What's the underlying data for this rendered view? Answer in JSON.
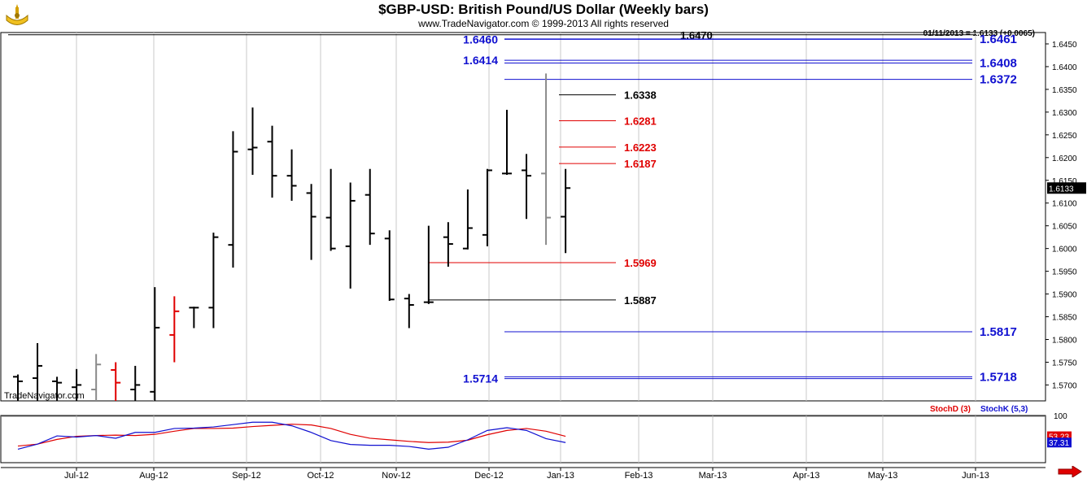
{
  "header": {
    "title": "$GBP-USD:  British Pound/US Dollar  (Weekly bars)",
    "copyright": "www.TradeNavigator.com © 1999-2013 All rights reserved",
    "quote": "01/11/2013 = 1.6133 (+0.0065)",
    "watermark": "TradeNavigator.com"
  },
  "colors": {
    "blue": "#1010d0",
    "red": "#e00000",
    "black": "#000000",
    "gray": "#8a8a8a",
    "grid": "#c8c8c8"
  },
  "chart_data": {
    "type": "bar",
    "title": "$GBP-USD:  British Pound/US Dollar  (Weekly bars)",
    "price_axis": {
      "ylim": [
        1.5665,
        1.6475
      ],
      "ticks": [
        "1.6450",
        "1.6400",
        "1.6350",
        "1.6300",
        "1.6250",
        "1.6200",
        "1.6150",
        "1.6100",
        "1.6050",
        "1.6000",
        "1.5950",
        "1.5900",
        "1.5850",
        "1.5800",
        "1.5750",
        "1.5700"
      ],
      "last_price_label": "1.6133"
    },
    "time_axis": {
      "labels": [
        "Jul-12",
        "Aug-12",
        "Sep-12",
        "Oct-12",
        "Nov-12",
        "Dec-12",
        "Jan-13",
        "Feb-13",
        "Mar-13",
        "Apr-13",
        "May-13",
        "Jun-13"
      ]
    },
    "ohlc": [
      {
        "h": 1.5723,
        "l": 1.5665,
        "o": 1.5718,
        "c": 1.5708,
        "color": "black"
      },
      {
        "h": 1.5792,
        "l": 1.5665,
        "o": 1.5715,
        "c": 1.5742,
        "color": "black"
      },
      {
        "h": 1.5718,
        "l": 1.5665,
        "o": 1.5708,
        "c": 1.5705,
        "color": "black"
      },
      {
        "h": 1.5735,
        "l": 1.5665,
        "o": 1.5695,
        "c": 1.57,
        "color": "black"
      },
      {
        "h": 1.5768,
        "l": 1.5665,
        "o": 1.569,
        "c": 1.5745,
        "color": "gray"
      },
      {
        "h": 1.575,
        "l": 1.5665,
        "o": 1.5733,
        "c": 1.5705,
        "color": "red"
      },
      {
        "h": 1.5742,
        "l": 1.5665,
        "o": 1.569,
        "c": 1.57,
        "color": "black"
      },
      {
        "h": 1.5915,
        "l": 1.5665,
        "o": 1.5685,
        "c": 1.5826,
        "color": "black"
      },
      {
        "h": 1.5895,
        "l": 1.575,
        "o": 1.581,
        "c": 1.5862,
        "color": "red"
      },
      {
        "h": 1.5872,
        "l": 1.5825,
        "o": 1.587,
        "c": 1.587,
        "color": "black"
      },
      {
        "h": 1.6035,
        "l": 1.5825,
        "o": 1.587,
        "c": 1.6025,
        "color": "black"
      },
      {
        "h": 1.6258,
        "l": 1.5958,
        "o": 1.6008,
        "c": 1.6213,
        "color": "black"
      },
      {
        "h": 1.631,
        "l": 1.6162,
        "o": 1.6218,
        "c": 1.6222,
        "color": "black"
      },
      {
        "h": 1.627,
        "l": 1.6112,
        "o": 1.6235,
        "c": 1.616,
        "color": "black"
      },
      {
        "h": 1.6218,
        "l": 1.6105,
        "o": 1.616,
        "c": 1.6138,
        "color": "black"
      },
      {
        "h": 1.6142,
        "l": 1.5975,
        "o": 1.6122,
        "c": 1.607,
        "color": "black"
      },
      {
        "h": 1.6175,
        "l": 1.5995,
        "o": 1.6068,
        "c": 1.6,
        "color": "black"
      },
      {
        "h": 1.6145,
        "l": 1.5912,
        "o": 1.6005,
        "c": 1.6105,
        "color": "black"
      },
      {
        "h": 1.6175,
        "l": 1.6008,
        "o": 1.6118,
        "c": 1.6033,
        "color": "black"
      },
      {
        "h": 1.604,
        "l": 1.5885,
        "o": 1.6022,
        "c": 1.5888,
        "color": "black"
      },
      {
        "h": 1.59,
        "l": 1.5825,
        "o": 1.589,
        "c": 1.5876,
        "color": "black"
      },
      {
        "h": 1.605,
        "l": 1.5878,
        "o": 1.5882,
        "c": 1.5882,
        "color": "black"
      },
      {
        "h": 1.6058,
        "l": 1.596,
        "o": 1.6025,
        "c": 1.601,
        "color": "black"
      },
      {
        "h": 1.613,
        "l": 1.5998,
        "o": 1.6,
        "c": 1.6045,
        "color": "black"
      },
      {
        "h": 1.6175,
        "l": 1.6005,
        "o": 1.603,
        "c": 1.6172,
        "color": "black"
      },
      {
        "h": 1.6305,
        "l": 1.6162,
        "o": 1.6165,
        "c": 1.6165,
        "color": "black"
      },
      {
        "h": 1.6208,
        "l": 1.6065,
        "o": 1.6172,
        "c": 1.616,
        "color": "black"
      },
      {
        "h": 1.6385,
        "l": 1.6008,
        "o": 1.6165,
        "c": 1.6068,
        "color": "gray"
      },
      {
        "h": 1.6175,
        "l": 1.599,
        "o": 1.607,
        "c": 1.6133,
        "color": "black"
      }
    ],
    "levels": [
      {
        "price": 1.647,
        "label": "1.6470",
        "color": "black",
        "line": "long"
      },
      {
        "price": 1.646,
        "label": "1.6460",
        "color": "blue",
        "line": "left-label"
      },
      {
        "price": 1.6461,
        "label": "1.6461",
        "color": "blue",
        "line": "right-label"
      },
      {
        "price": 1.6414,
        "label": "1.6414",
        "color": "blue",
        "line": "left-label"
      },
      {
        "price": 1.6408,
        "label": "1.6408",
        "color": "blue",
        "line": "right-label"
      },
      {
        "price": 1.6372,
        "label": "1.6372",
        "color": "blue",
        "line": "right-label"
      },
      {
        "price": 1.6338,
        "label": "1.6338",
        "color": "black",
        "line": "short"
      },
      {
        "price": 1.6281,
        "label": "1.6281",
        "color": "red",
        "line": "short"
      },
      {
        "price": 1.6223,
        "label": "1.6223",
        "color": "red",
        "line": "short"
      },
      {
        "price": 1.6187,
        "label": "1.6187",
        "color": "red",
        "line": "short"
      },
      {
        "price": 1.5969,
        "label": "1.5969",
        "color": "red",
        "line": "mid"
      },
      {
        "price": 1.5887,
        "label": "1.5887",
        "color": "black",
        "line": "mid"
      },
      {
        "price": 1.5817,
        "label": "1.5817",
        "color": "blue",
        "line": "right-label"
      },
      {
        "price": 1.5718,
        "label": "1.5718",
        "color": "blue",
        "line": "right-label"
      },
      {
        "price": 1.5714,
        "label": "1.5714",
        "color": "blue",
        "line": "left-label"
      }
    ],
    "stochastic": {
      "ylim": [
        0,
        100
      ],
      "tick": "100",
      "legend": [
        "StochD (3)",
        "StochK (5,3)"
      ],
      "stochD_label": "53.23",
      "stochK_label": "37.31",
      "stochD": [
        28,
        33,
        45,
        53,
        55,
        56,
        55,
        58,
        66,
        73,
        73,
        74,
        78,
        81,
        84,
        82,
        73,
        58,
        48,
        44,
        40,
        37,
        38,
        43,
        57,
        68,
        73,
        66,
        53
      ],
      "stochK": [
        20,
        33,
        54,
        51,
        55,
        48,
        63,
        63,
        73,
        74,
        77,
        83,
        89,
        89,
        80,
        63,
        42,
        32,
        30,
        30,
        27,
        20,
        25,
        44,
        68,
        75,
        68,
        47,
        37
      ]
    }
  }
}
